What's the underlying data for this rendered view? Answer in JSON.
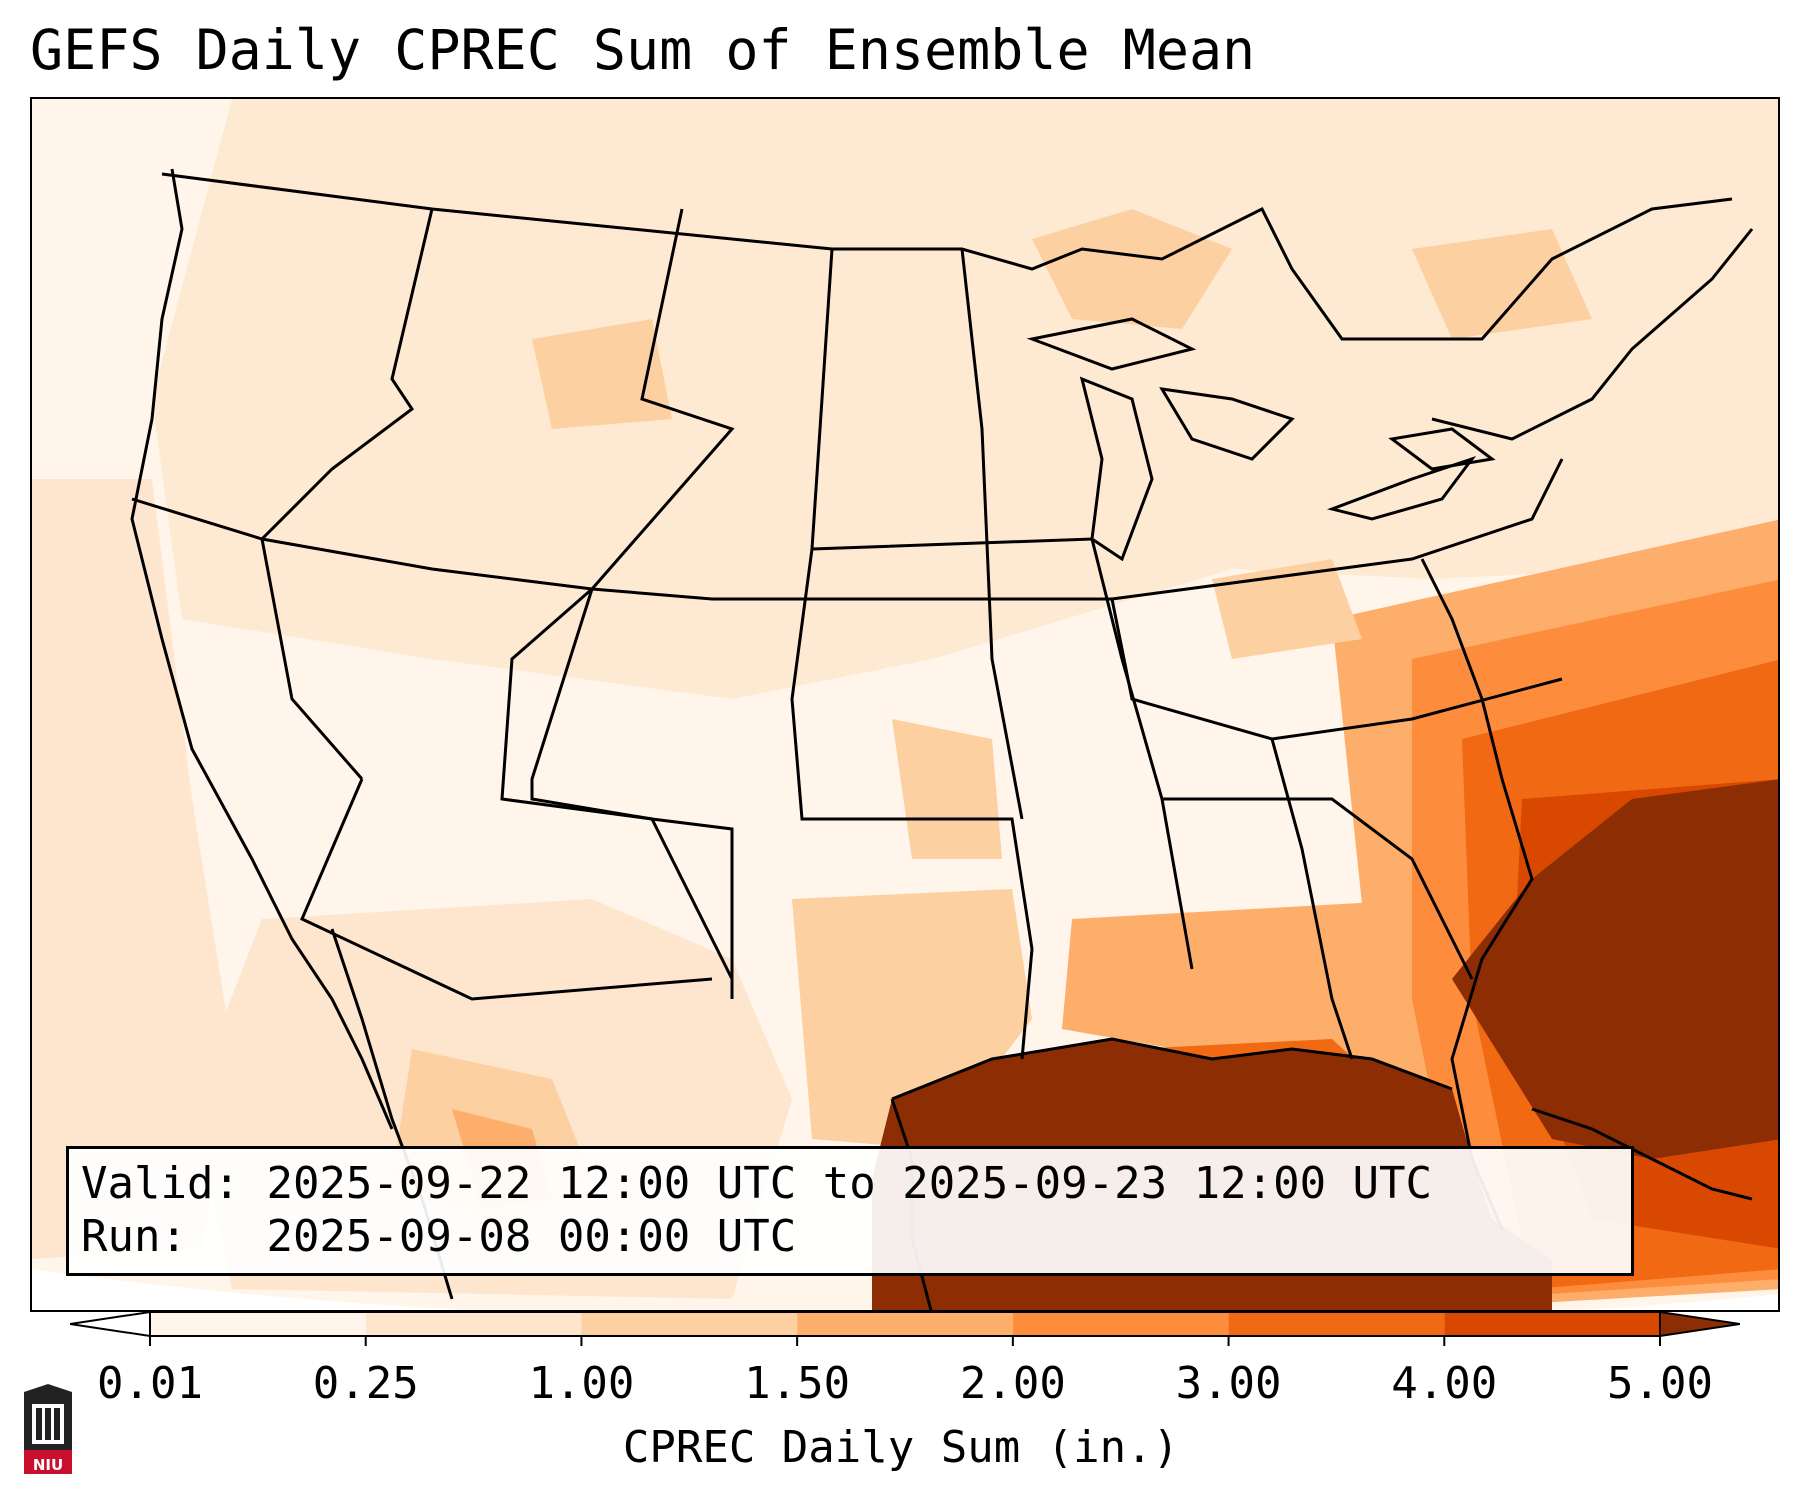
{
  "title": "GEFS Daily CPREC Sum of Ensemble Mean",
  "info": {
    "valid_label": "Valid:",
    "valid_value": "2025-09-22 12:00 UTC to 2025-09-23 12:00 UTC",
    "run_label": "Run:  ",
    "run_value": "2025-09-08 00:00 UTC"
  },
  "colorbar": {
    "label": "CPREC Daily Sum (in.)",
    "ticks": [
      "0.01",
      "0.25",
      "1.00",
      "1.50",
      "2.00",
      "3.00",
      "4.00",
      "5.00"
    ],
    "colors": [
      "#fff5eb",
      "#fee6ce",
      "#fdd0a2",
      "#fdae6b",
      "#fd8d3c",
      "#f16913",
      "#d94801",
      "#8c2d04"
    ],
    "under_color": "#ffffff",
    "over_color": "#8c2d04"
  },
  "logo": {
    "text": "NIU",
    "color": "#c8102e"
  }
}
